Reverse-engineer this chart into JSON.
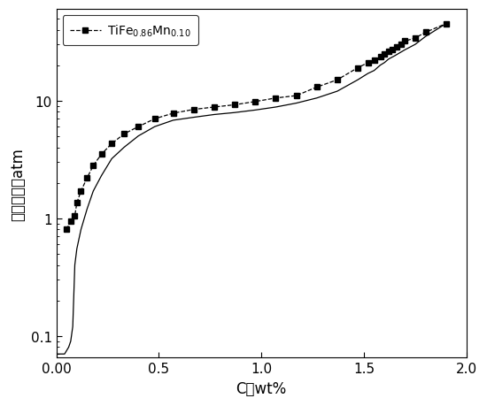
{
  "title": "",
  "xlabel": "C，wt%",
  "ylabel": "分解压强，atm",
  "xlim": [
    0.0,
    2.0
  ],
  "ylim_log": [
    0.065,
    60
  ],
  "background_color": "#ffffff",
  "line_color": "#000000",
  "marker": "s",
  "markersize": 5,
  "abs_x": [
    0.05,
    0.07,
    0.09,
    0.1,
    0.12,
    0.15,
    0.18,
    0.22,
    0.27,
    0.33,
    0.4,
    0.48,
    0.57,
    0.67,
    0.77,
    0.87,
    0.97,
    1.07,
    1.17,
    1.27,
    1.37,
    1.47,
    1.52,
    1.55,
    1.58,
    1.6,
    1.62,
    1.64,
    1.66,
    1.68,
    1.7,
    1.75,
    1.8,
    1.9
  ],
  "abs_y": [
    0.8,
    0.95,
    1.05,
    1.35,
    1.7,
    2.2,
    2.8,
    3.5,
    4.3,
    5.2,
    6.0,
    7.0,
    7.8,
    8.4,
    8.8,
    9.2,
    9.8,
    10.5,
    11.0,
    13.0,
    15.0,
    19.0,
    21.0,
    22.0,
    23.5,
    25.0,
    26.0,
    27.0,
    28.5,
    30.0,
    32.0,
    34.0,
    38.0,
    45.0
  ],
  "des_x": [
    0.0,
    0.02,
    0.04,
    0.06,
    0.07,
    0.08,
    0.09,
    0.1,
    0.12,
    0.15,
    0.18,
    0.22,
    0.27,
    0.33,
    0.4,
    0.48,
    0.57,
    0.67,
    0.77,
    0.87,
    0.97,
    1.07,
    1.17,
    1.27,
    1.37,
    1.47,
    1.52,
    1.55,
    1.58,
    1.6,
    1.62,
    1.65,
    1.7,
    1.75,
    1.8,
    1.9
  ],
  "des_y": [
    0.07,
    0.07,
    0.07,
    0.08,
    0.09,
    0.12,
    0.4,
    0.55,
    0.8,
    1.2,
    1.7,
    2.3,
    3.2,
    4.0,
    5.0,
    6.0,
    6.8,
    7.2,
    7.6,
    7.9,
    8.3,
    8.8,
    9.5,
    10.5,
    12.0,
    15.0,
    17.0,
    18.0,
    20.0,
    21.0,
    22.5,
    24.0,
    27.0,
    30.0,
    35.0,
    45.0
  ],
  "legend_label": "TiFe$_{0.86}$Mn$_{0.10}$",
  "font_size": 12,
  "tick_fontsize": 11
}
